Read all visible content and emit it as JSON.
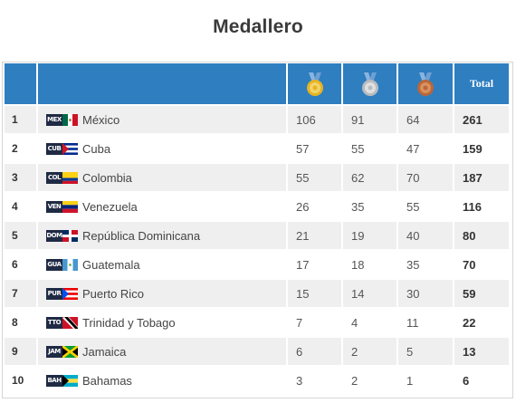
{
  "page": {
    "title": "Medallero"
  },
  "header": {
    "total_label": "Total",
    "gold_icon": "gold-medal-icon",
    "silver_icon": "silver-medal-icon",
    "bronze_icon": "bronze-medal-icon"
  },
  "colors": {
    "header_bg": "#2e7ec0",
    "row_alt": "#efefef",
    "gold": "#e6b422",
    "silver": "#b9bcbf",
    "bronze": "#b8673a"
  },
  "rows": [
    {
      "rank": "1",
      "code": "MEX",
      "country": "México",
      "gold": "106",
      "silver": "91",
      "bronze": "64",
      "total": "261",
      "flag_icon": "mexico-flag-icon"
    },
    {
      "rank": "2",
      "code": "CUB",
      "country": "Cuba",
      "gold": "57",
      "silver": "55",
      "bronze": "47",
      "total": "159",
      "flag_icon": "cuba-flag-icon"
    },
    {
      "rank": "3",
      "code": "COL",
      "country": "Colombia",
      "gold": "55",
      "silver": "62",
      "bronze": "70",
      "total": "187",
      "flag_icon": "colombia-flag-icon"
    },
    {
      "rank": "4",
      "code": "VEN",
      "country": "Venezuela",
      "gold": "26",
      "silver": "35",
      "bronze": "55",
      "total": "116",
      "flag_icon": "venezuela-flag-icon"
    },
    {
      "rank": "5",
      "code": "DOM",
      "country": "República Dominicana",
      "gold": "21",
      "silver": "19",
      "bronze": "40",
      "total": "80",
      "flag_icon": "dominican-republic-flag-icon"
    },
    {
      "rank": "6",
      "code": "GUA",
      "country": "Guatemala",
      "gold": "17",
      "silver": "18",
      "bronze": "35",
      "total": "70",
      "flag_icon": "guatemala-flag-icon"
    },
    {
      "rank": "7",
      "code": "PUR",
      "country": "Puerto Rico",
      "gold": "15",
      "silver": "14",
      "bronze": "30",
      "total": "59",
      "flag_icon": "puerto-rico-flag-icon"
    },
    {
      "rank": "8",
      "code": "TTO",
      "country": "Trinidad y Tobago",
      "gold": "7",
      "silver": "4",
      "bronze": "11",
      "total": "22",
      "flag_icon": "trinidad-tobago-flag-icon"
    },
    {
      "rank": "9",
      "code": "JAM",
      "country": "Jamaica",
      "gold": "6",
      "silver": "2",
      "bronze": "5",
      "total": "13",
      "flag_icon": "jamaica-flag-icon"
    },
    {
      "rank": "10",
      "code": "BAH",
      "country": "Bahamas",
      "gold": "3",
      "silver": "2",
      "bronze": "1",
      "total": "6",
      "flag_icon": "bahamas-flag-icon"
    }
  ]
}
